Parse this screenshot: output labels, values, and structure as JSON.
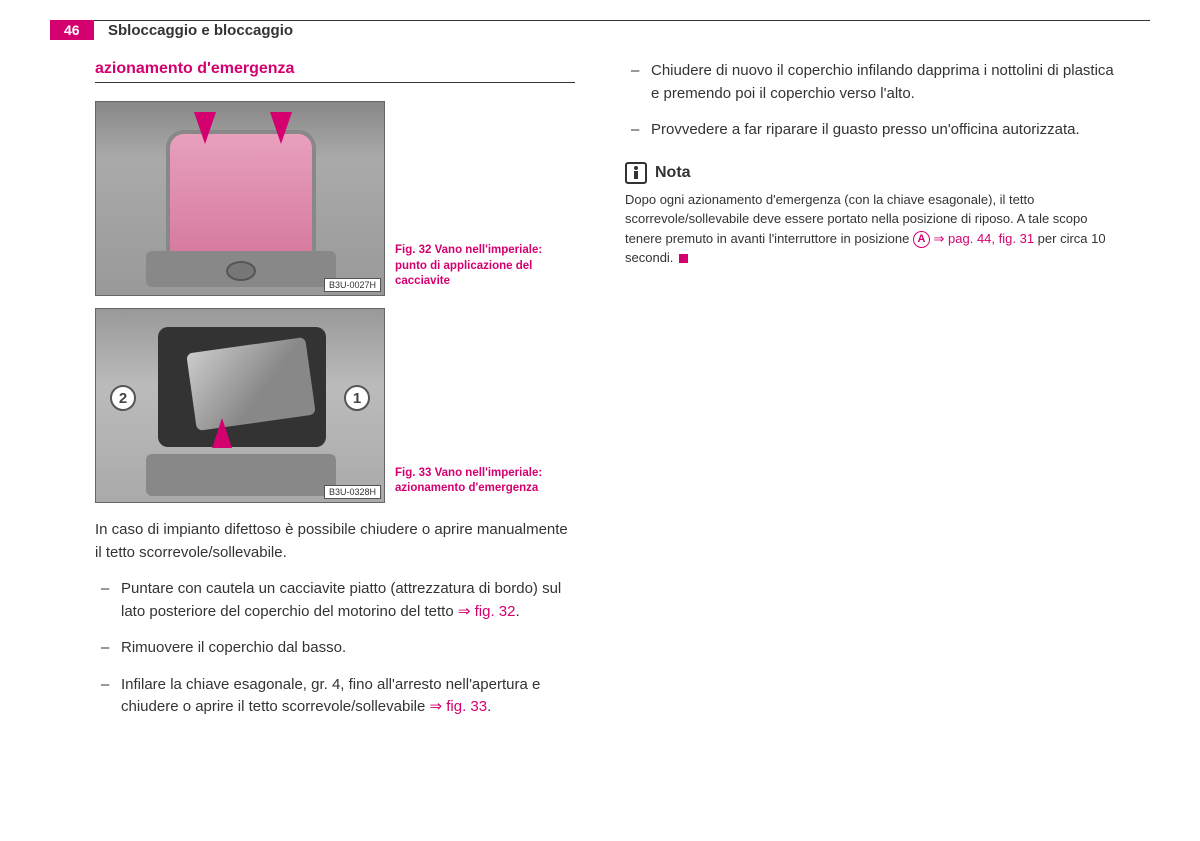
{
  "page_number": "46",
  "chapter_title": "Sbloccaggio e bloccaggio",
  "section_title": "azionamento d'emergenza",
  "figure1": {
    "caption": "Fig. 32   Vano nell'imperiale: punto di applicazione del cacciavite",
    "code": "B3U-0027H",
    "label_num": "32"
  },
  "figure2": {
    "caption": "Fig. 33   Vano nell'imperiale: azionamento d'emergenza",
    "code": "B3U-0328H",
    "marker1": "1",
    "marker2": "2",
    "label_num": "33"
  },
  "intro_text": "In caso di impianto difettoso è possibile chiudere o aprire manualmente il tetto scorrevole/sollevabile.",
  "list_left": [
    {
      "pre": "Puntare con cautela un cacciavite piatto (attrezzatura di bordo) sul lato posteriore del coperchio del motorino del tetto ",
      "ref": "⇒ fig. 32",
      "post": "."
    },
    {
      "pre": "Rimuovere il coperchio dal basso.",
      "ref": "",
      "post": ""
    },
    {
      "pre": "Infilare la chiave esagonale, gr. 4, fino all'arresto nell'apertura e chiudere o aprire il tetto scorrevole/sollevabile ",
      "ref": "⇒ fig. 33",
      "post": "."
    }
  ],
  "list_right": [
    {
      "pre": "Chiudere di nuovo il coperchio infilando dapprima i nottolini di plastica e premendo poi il coperchio verso l'alto.",
      "ref": "",
      "post": ""
    },
    {
      "pre": "Provvedere a far riparare il guasto presso un'officina autorizzata.",
      "ref": "",
      "post": ""
    }
  ],
  "note_title": "Nota",
  "note_text_pre": "Dopo ogni azionamento d'emergenza (con la chiave esagonale), il tetto scorrevole/sollevabile deve essere portato nella posizione di riposo. A tale scopo tenere premuto in avanti l'interruttore in posizione ",
  "note_circled": "A",
  "note_ref": " ⇒ pag. 44, fig. 31",
  "note_text_post": " per circa 10 secondi.",
  "colors": {
    "accent": "#d4006f",
    "text": "#333333",
    "bg": "#ffffff"
  }
}
